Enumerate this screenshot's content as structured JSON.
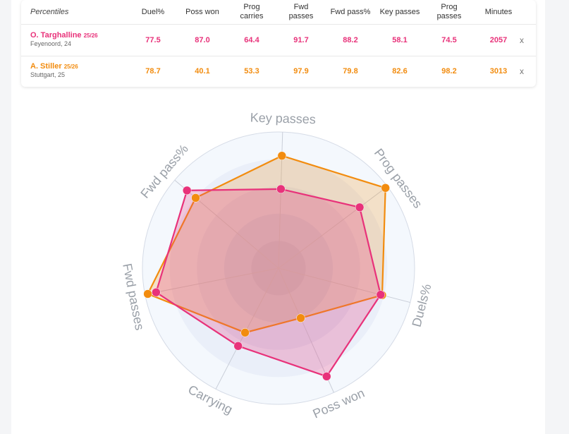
{
  "table": {
    "headers": [
      "Percentiles",
      "Duel%",
      "Poss won",
      "Prog\ncarries",
      "Fwd\npasses",
      "Fwd pass%",
      "Key passes",
      "Prog\npasses",
      "Minutes"
    ],
    "close_label": "x",
    "players": [
      {
        "name": "O. Targhalline",
        "season": "25/26",
        "club": "Feyenoord, 24",
        "color": "#e8327a",
        "values": [
          "77.5",
          "87.0",
          "64.4",
          "91.7",
          "88.2",
          "58.1",
          "74.5",
          "2057"
        ]
      },
      {
        "name": "A. Stiller",
        "season": "25/26",
        "club": "Stuttgart, 25",
        "color": "#f28c0f",
        "values": [
          "78.7",
          "40.1",
          "53.3",
          "97.9",
          "79.8",
          "82.6",
          "98.2",
          "3013"
        ]
      }
    ]
  },
  "chart_data": {
    "type": "radar",
    "axes": [
      "Key passes",
      "Prog passes",
      "Duels%",
      "Poss won",
      "Carrying",
      "Fwd passes",
      "Fwd pass%"
    ],
    "range": [
      0,
      100
    ],
    "series": [
      {
        "name": "O. Targhalline",
        "color": "#e8327a",
        "values": [
          58.1,
          74.5,
          77.5,
          87.0,
          64.4,
          91.7,
          88.2
        ]
      },
      {
        "name": "A. Stiller",
        "color": "#f28c0f",
        "values": [
          82.6,
          98.2,
          78.7,
          40.1,
          53.3,
          97.9,
          79.8
        ]
      }
    ]
  }
}
